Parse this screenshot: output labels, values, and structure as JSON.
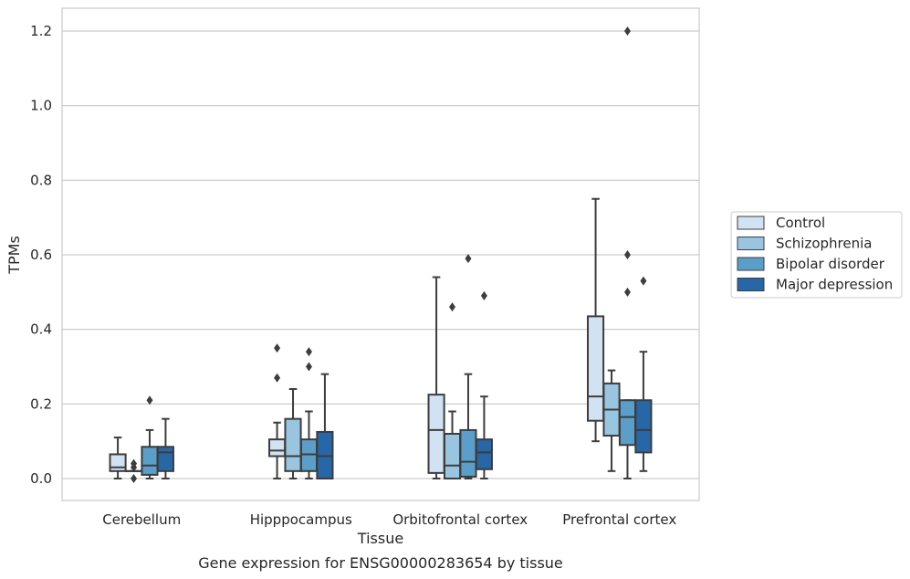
{
  "chart_data": {
    "type": "box",
    "title": "",
    "caption": "Gene expression for ENSG00000283654 by tissue",
    "xlabel": "Tissue",
    "ylabel": "TPMs",
    "categories": [
      "Cerebellum",
      "Hipppocampus",
      "Orbitofrontal cortex",
      "Prefrontal cortex"
    ],
    "ylim": [
      -0.06,
      1.26
    ],
    "yticks": [
      0.0,
      0.2,
      0.4,
      0.6,
      0.8,
      1.0,
      1.2
    ],
    "ytick_labels": [
      "0.0",
      "0.2",
      "0.4",
      "0.6",
      "0.8",
      "1.0",
      "1.2"
    ],
    "grid": "horizontal",
    "legend_position": "right",
    "series": [
      {
        "name": "Control",
        "color": "#d1e2f2",
        "boxes": [
          {
            "min": 0.0,
            "q1": 0.02,
            "median": 0.03,
            "q3": 0.065,
            "max": 0.11,
            "outliers": []
          },
          {
            "min": 0.0,
            "q1": 0.06,
            "median": 0.075,
            "q3": 0.105,
            "max": 0.15,
            "outliers": [
              0.27,
              0.35
            ]
          },
          {
            "min": 0.0,
            "q1": 0.015,
            "median": 0.13,
            "q3": 0.225,
            "max": 0.54,
            "outliers": []
          },
          {
            "min": 0.1,
            "q1": 0.155,
            "median": 0.22,
            "q3": 0.435,
            "max": 0.75,
            "outliers": []
          }
        ]
      },
      {
        "name": "Schizophrenia",
        "color": "#9ac5e0",
        "boxes": [
          {
            "min": 0.02,
            "q1": 0.02,
            "median": 0.02,
            "q3": 0.02,
            "max": 0.02,
            "outliers": [
              0.0,
              0.03,
              0.04
            ]
          },
          {
            "min": 0.0,
            "q1": 0.02,
            "median": 0.06,
            "q3": 0.16,
            "max": 0.24,
            "outliers": []
          },
          {
            "min": 0.0,
            "q1": 0.0,
            "median": 0.035,
            "q3": 0.12,
            "max": 0.18,
            "outliers": [
              0.46
            ]
          },
          {
            "min": 0.02,
            "q1": 0.115,
            "median": 0.185,
            "q3": 0.255,
            "max": 0.29,
            "outliers": []
          }
        ]
      },
      {
        "name": "Bipolar disorder",
        "color": "#5a9ec9",
        "boxes": [
          {
            "min": 0.0,
            "q1": 0.01,
            "median": 0.035,
            "q3": 0.085,
            "max": 0.13,
            "outliers": [
              0.21
            ]
          },
          {
            "min": 0.0,
            "q1": 0.02,
            "median": 0.065,
            "q3": 0.105,
            "max": 0.18,
            "outliers": [
              0.3,
              0.34
            ]
          },
          {
            "min": 0.0,
            "q1": 0.005,
            "median": 0.045,
            "q3": 0.13,
            "max": 0.28,
            "outliers": [
              0.59
            ]
          },
          {
            "min": 0.0,
            "q1": 0.09,
            "median": 0.165,
            "q3": 0.21,
            "max": 0.21,
            "outliers": [
              0.5,
              0.6,
              1.2
            ]
          }
        ]
      },
      {
        "name": "Major depression",
        "color": "#2767a8",
        "boxes": [
          {
            "min": 0.0,
            "q1": 0.02,
            "median": 0.07,
            "q3": 0.085,
            "max": 0.16,
            "outliers": []
          },
          {
            "min": 0.0,
            "q1": 0.0,
            "median": 0.06,
            "q3": 0.125,
            "max": 0.28,
            "outliers": []
          },
          {
            "min": 0.0,
            "q1": 0.025,
            "median": 0.07,
            "q3": 0.105,
            "max": 0.22,
            "outliers": [
              0.49
            ]
          },
          {
            "min": 0.02,
            "q1": 0.07,
            "median": 0.13,
            "q3": 0.21,
            "max": 0.34,
            "outliers": [
              0.53
            ]
          }
        ]
      }
    ]
  }
}
